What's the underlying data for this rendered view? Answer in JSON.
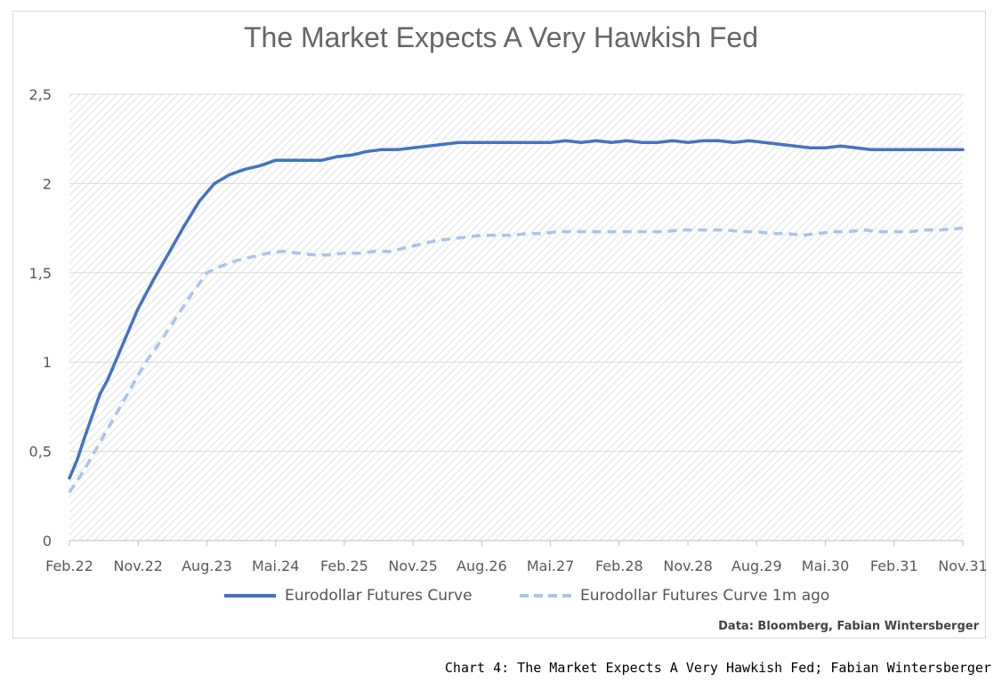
{
  "chart_data": {
    "type": "line",
    "title": "The Market Expects A Very Hawkish Fed",
    "x_tick_labels": [
      "Feb.22",
      "Nov.22",
      "Aug.23",
      "Mai.24",
      "Feb.25",
      "Nov.25",
      "Aug.26",
      "Mai.27",
      "Feb.28",
      "Nov.28",
      "Aug.29",
      "Mai.30",
      "Feb.31",
      "Nov.31"
    ],
    "y_tick_labels": [
      "0",
      "0,5",
      "1",
      "1,5",
      "2",
      "2,5"
    ],
    "ylim": [
      0,
      2.5
    ],
    "x_unit": "months since Feb.22",
    "xlim": [
      0,
      117
    ],
    "grid": true,
    "legend_position": "bottom",
    "series": [
      {
        "name": "Eurodollar Futures Curve",
        "color": "#4472c4",
        "style": "solid",
        "x": [
          0,
          1,
          2,
          3,
          4,
          5,
          6,
          7,
          8,
          9,
          11,
          13,
          15,
          17,
          19,
          21,
          23,
          25,
          27,
          29,
          31,
          33,
          35,
          37,
          39,
          41,
          43,
          45,
          47,
          49,
          51,
          53,
          55,
          57,
          59,
          61,
          63,
          65,
          67,
          69,
          71,
          73,
          75,
          77,
          79,
          81,
          83,
          85,
          87,
          89,
          91,
          93,
          95,
          97,
          99,
          101,
          103,
          105,
          107,
          109,
          111,
          113,
          115,
          117
        ],
        "values": [
          0.35,
          0.45,
          0.58,
          0.7,
          0.82,
          0.9,
          1.0,
          1.1,
          1.2,
          1.3,
          1.46,
          1.61,
          1.76,
          1.9,
          2.0,
          2.05,
          2.08,
          2.1,
          2.13,
          2.13,
          2.13,
          2.13,
          2.15,
          2.16,
          2.18,
          2.19,
          2.19,
          2.2,
          2.21,
          2.22,
          2.23,
          2.23,
          2.23,
          2.23,
          2.23,
          2.23,
          2.23,
          2.24,
          2.23,
          2.24,
          2.23,
          2.24,
          2.23,
          2.23,
          2.24,
          2.23,
          2.24,
          2.24,
          2.23,
          2.24,
          2.23,
          2.22,
          2.21,
          2.2,
          2.2,
          2.21,
          2.2,
          2.19,
          2.19,
          2.19,
          2.19,
          2.19,
          2.19,
          2.19
        ]
      },
      {
        "name": "Eurodollar Futures Curve 1m ago",
        "color": "#a9c4eb",
        "style": "dashed",
        "x": [
          0,
          2,
          4,
          6,
          8,
          10,
          12,
          14,
          16,
          18,
          20,
          22,
          24,
          26,
          28,
          30,
          32,
          34,
          36,
          38,
          40,
          42,
          44,
          46,
          48,
          50,
          52,
          54,
          56,
          58,
          60,
          62,
          64,
          66,
          68,
          70,
          72,
          74,
          76,
          78,
          80,
          82,
          84,
          86,
          88,
          90,
          92,
          94,
          96,
          98,
          100,
          102,
          104,
          106,
          108,
          110,
          112,
          114,
          117
        ],
        "values": [
          0.27,
          0.4,
          0.55,
          0.7,
          0.85,
          1.0,
          1.12,
          1.25,
          1.38,
          1.5,
          1.54,
          1.57,
          1.59,
          1.61,
          1.62,
          1.61,
          1.6,
          1.6,
          1.61,
          1.61,
          1.62,
          1.62,
          1.64,
          1.66,
          1.68,
          1.69,
          1.7,
          1.71,
          1.71,
          1.71,
          1.72,
          1.72,
          1.73,
          1.73,
          1.73,
          1.73,
          1.73,
          1.73,
          1.73,
          1.73,
          1.74,
          1.74,
          1.74,
          1.74,
          1.73,
          1.73,
          1.72,
          1.72,
          1.71,
          1.72,
          1.73,
          1.73,
          1.74,
          1.73,
          1.73,
          1.73,
          1.74,
          1.74,
          1.75
        ]
      }
    ]
  },
  "source": "Data: Bloomberg, Fabian Wintersberger",
  "caption": "Chart 4: The Market Expects A Very Hawkish Fed; Fabian Wintersberger"
}
